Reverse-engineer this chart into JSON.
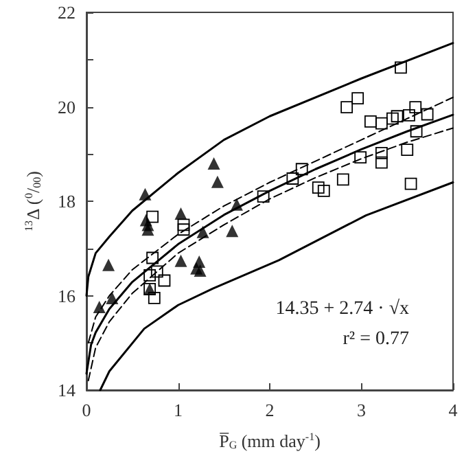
{
  "chart_data": {
    "type": "scatter",
    "xlabel": "P̅$_{G}$ (mm day$^{-1}$)",
    "ylabel": "$^{13}$Δ ($^{0}$/$_{00}$)",
    "xlim": [
      0,
      4
    ],
    "xticks": [
      0,
      1,
      2,
      3,
      4
    ],
    "ylim": [
      14,
      22
    ],
    "yticks": [
      14,
      {
        "value": 15,
        "label": null
      },
      16,
      {
        "value": 17,
        "label": null
      },
      18,
      {
        "value": 19,
        "label": null
      },
      20,
      {
        "value": 21,
        "label": null
      },
      22
    ],
    "grid": false,
    "annotations": [
      "14.35 + 2.74 · √x",
      "r² = 0.77"
    ],
    "series": [
      {
        "marker": "triangle",
        "color": "#000000",
        "x": [
          0.14,
          0.28,
          0.24,
          0.64,
          0.65,
          0.67,
          0.67,
          0.69,
          1.03,
          1.03,
          1.27,
          1.23,
          1.2,
          1.24,
          1.39,
          1.43,
          1.59,
          1.64
        ],
        "values": [
          15.76,
          15.95,
          16.65,
          18.15,
          17.6,
          17.5,
          17.4,
          16.14,
          17.74,
          16.74,
          17.35,
          16.72,
          16.58,
          16.53,
          18.8,
          18.41,
          17.37,
          17.93
        ]
      },
      {
        "marker": "square",
        "color": "#000000",
        "x": [
          0.72,
          1.06,
          1.06,
          0.72,
          0.69,
          0.77,
          0.85,
          0.69,
          0.74,
          1.93,
          3.43,
          2.84,
          2.96,
          3.1,
          3.22,
          3.34,
          3.39,
          3.52,
          3.59,
          3.72,
          3.6,
          2.99,
          3.22,
          3.22,
          3.5,
          3.54,
          2.35,
          2.25,
          2.8,
          2.53,
          2.59
        ],
        "values": [
          17.67,
          17.5,
          17.4,
          16.8,
          16.43,
          16.51,
          16.32,
          16.14,
          15.95,
          18.1,
          20.83,
          19.99,
          20.18,
          19.69,
          19.65,
          19.75,
          19.8,
          19.82,
          19.99,
          19.84,
          19.48,
          18.93,
          19.02,
          18.82,
          19.09,
          18.37,
          18.68,
          18.48,
          18.46,
          18.29,
          18.22
        ]
      },
      {
        "type": "line",
        "marker": "none",
        "line_style": "solid",
        "color": "#000000",
        "x": [
          0,
          0.02,
          0.1,
          0.25,
          0.5,
          1,
          1.5,
          2,
          3,
          4
        ],
        "values": [
          16.0,
          16.4,
          16.9,
          17.25,
          17.8,
          18.6,
          19.3,
          19.8,
          20.6,
          21.35
        ]
      },
      {
        "type": "line",
        "marker": "none",
        "line_style": "solid",
        "color": "#000000",
        "x": [
          0.15,
          0.25,
          0.63,
          1,
          1.38,
          2.1,
          3.05,
          4
        ],
        "values": [
          14.0,
          14.4,
          15.3,
          15.8,
          16.15,
          16.75,
          17.7,
          18.4
        ]
      },
      {
        "type": "line",
        "marker": "none",
        "line_style": "solid",
        "color": "#000000",
        "x": [
          0,
          0.05,
          0.1,
          0.25,
          0.5,
          1,
          1.5,
          2,
          2.5,
          3,
          3.5,
          4
        ],
        "values": [
          14.35,
          14.96,
          15.22,
          15.72,
          16.29,
          17.09,
          17.71,
          18.22,
          18.68,
          19.1,
          19.48,
          19.83
        ]
      },
      {
        "type": "line",
        "marker": "none",
        "line_style": "dashed",
        "color": "#000000",
        "x": [
          0.02,
          0.1,
          0.25,
          0.5,
          1,
          1.5,
          2,
          2.5,
          3,
          3.5,
          4
        ],
        "values": [
          15.0,
          15.55,
          16.0,
          16.55,
          17.3,
          17.9,
          18.4,
          18.85,
          19.3,
          19.75,
          20.2
        ]
      },
      {
        "type": "line",
        "marker": "none",
        "line_style": "dashed",
        "color": "#000000",
        "x": [
          0.02,
          0.1,
          0.25,
          0.5,
          1,
          1.5,
          2,
          2.5,
          3,
          3.5,
          4
        ],
        "values": [
          14.2,
          14.9,
          15.45,
          16.05,
          16.9,
          17.5,
          18.05,
          18.5,
          18.9,
          19.25,
          19.55
        ]
      }
    ]
  }
}
